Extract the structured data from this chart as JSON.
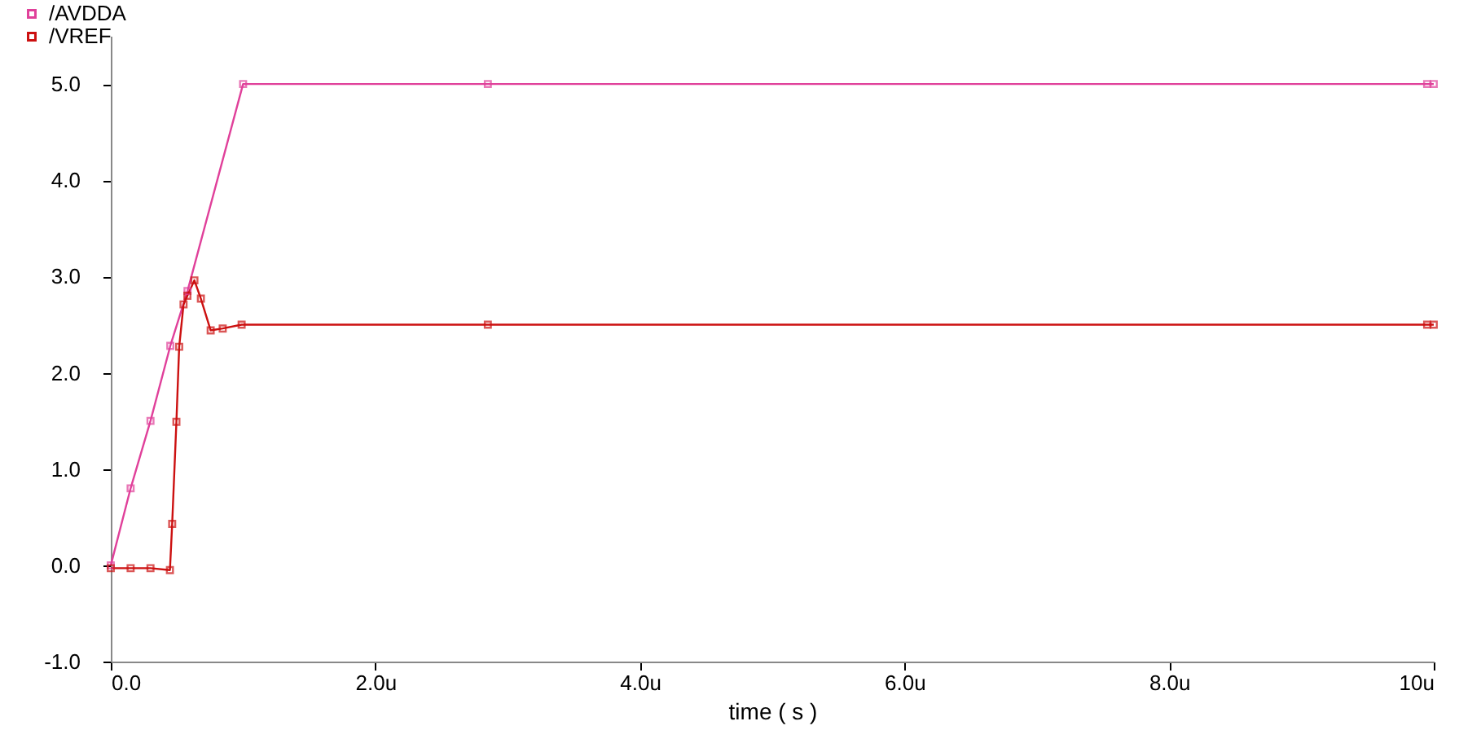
{
  "chart_data": {
    "type": "line",
    "xlabel": "time ( s )",
    "xlim": [
      0,
      10
    ],
    "xticks": [
      {
        "value": 0,
        "label": "0.0"
      },
      {
        "value": 2,
        "label": "2.0u"
      },
      {
        "value": 4,
        "label": "4.0u"
      },
      {
        "value": 6,
        "label": "6.0u"
      },
      {
        "value": 8,
        "label": "8.0u"
      },
      {
        "value": 10,
        "label": "10u"
      }
    ],
    "ylim": [
      -1.0,
      5.5
    ],
    "yticks": [
      {
        "value": -1,
        "label": "-1.0"
      },
      {
        "value": 0,
        "label": "0.0"
      },
      {
        "value": 1,
        "label": "1.0"
      },
      {
        "value": 2,
        "label": "2.0"
      },
      {
        "value": 3,
        "label": "3.0"
      },
      {
        "value": 4,
        "label": "4.0"
      },
      {
        "value": 5,
        "label": "5.0"
      }
    ],
    "grid": false,
    "legend": "top left",
    "marker": "square",
    "line_style": "solid",
    "series": [
      {
        "name": "/AVDDA",
        "color": "#e0409a",
        "x": [
          0,
          0.15,
          0.3,
          0.45,
          0.58,
          1.0,
          2.85,
          9.95,
          10
        ],
        "values": [
          0,
          0.8,
          1.5,
          2.28,
          2.85,
          5.0,
          5.0,
          5.0,
          5.0
        ]
      },
      {
        "name": "/VREF",
        "color": "#cc1010",
        "x": [
          0,
          0.15,
          0.3,
          0.447,
          0.464,
          0.496,
          0.517,
          0.55,
          0.579,
          0.632,
          0.681,
          0.755,
          0.846,
          0.989,
          2.85,
          9.95,
          10
        ],
        "values": [
          -0.03,
          -0.03,
          -0.03,
          -0.05,
          0.43,
          1.49,
          2.27,
          2.71,
          2.8,
          2.96,
          2.77,
          2.44,
          2.46,
          2.5,
          2.5,
          2.5,
          2.5
        ]
      }
    ]
  }
}
